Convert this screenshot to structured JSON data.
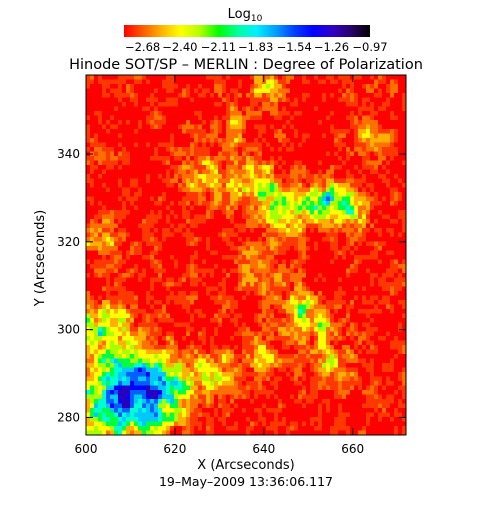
{
  "chart_data": {
    "type": "heatmap",
    "title": "Hinode SOT/SP – MERLIN : Degree of Polarization",
    "footer": "19–May–2009 13:36:06.117",
    "xlabel": "X (Arcseconds)",
    "ylabel": "Y (Arcseconds)",
    "xlim": [
      600,
      672
    ],
    "ylim": [
      276,
      358
    ],
    "x_ticks": [
      600,
      620,
      640,
      660
    ],
    "y_ticks": [
      280,
      300,
      320,
      340
    ],
    "colorbar": {
      "title_base": "Log",
      "title_sub": "10",
      "range": [
        -2.82,
        -0.97
      ],
      "tick_labels": [
        "−2.68",
        "−2.40",
        "−2.11",
        "−1.83",
        "−1.54",
        "−1.26",
        "−0.97"
      ],
      "colors": [
        "#ff0000",
        "#ff5a00",
        "#ffb400",
        "#ffff00",
        "#b4ff00",
        "#00ff00",
        "#00ff9a",
        "#00f0ff",
        "#00a0ff",
        "#0040ff",
        "#0000ff",
        "#3000c8",
        "#2a0068",
        "#000000"
      ]
    },
    "field_colors": [
      "#ff0000",
      "#ff3800",
      "#ff7000",
      "#ffb000",
      "#ffff00",
      "#a8ff00",
      "#00ff40",
      "#00ffd0",
      "#00c8ff",
      "#0060ff",
      "#0000ff",
      "#2800c0"
    ],
    "field_grid": [
      80,
      80
    ],
    "features": [
      {
        "x": 608,
        "y": 283,
        "sigma": 8,
        "weight": 1.1
      },
      {
        "x": 615,
        "y": 287,
        "sigma": 5,
        "weight": 0.8
      },
      {
        "x": 603,
        "y": 300,
        "sigma": 5,
        "weight": 0.7
      },
      {
        "x": 628,
        "y": 290,
        "sigma": 4,
        "weight": 0.5
      },
      {
        "x": 640,
        "y": 294,
        "sigma": 3,
        "weight": 0.6
      },
      {
        "x": 655,
        "y": 291,
        "sigma": 3,
        "weight": 0.45
      },
      {
        "x": 652,
        "y": 300,
        "sigma": 4,
        "weight": 0.5
      },
      {
        "x": 646,
        "y": 327,
        "sigma": 4,
        "weight": 0.7
      },
      {
        "x": 655,
        "y": 330,
        "sigma": 3,
        "weight": 0.8
      },
      {
        "x": 660,
        "y": 326,
        "sigma": 3,
        "weight": 0.6
      },
      {
        "x": 638,
        "y": 333,
        "sigma": 4,
        "weight": 0.55
      },
      {
        "x": 628,
        "y": 334,
        "sigma": 4,
        "weight": 0.45
      },
      {
        "x": 641,
        "y": 355,
        "sigma": 3,
        "weight": 0.5
      },
      {
        "x": 632,
        "y": 346,
        "sigma": 3,
        "weight": 0.35
      },
      {
        "x": 604,
        "y": 320,
        "sigma": 3,
        "weight": 0.45
      },
      {
        "x": 640,
        "y": 314,
        "sigma": 4,
        "weight": 0.35
      },
      {
        "x": 664,
        "y": 344,
        "sigma": 3,
        "weight": 0.35
      },
      {
        "x": 648,
        "y": 305,
        "sigma": 3,
        "weight": 0.4
      }
    ]
  }
}
